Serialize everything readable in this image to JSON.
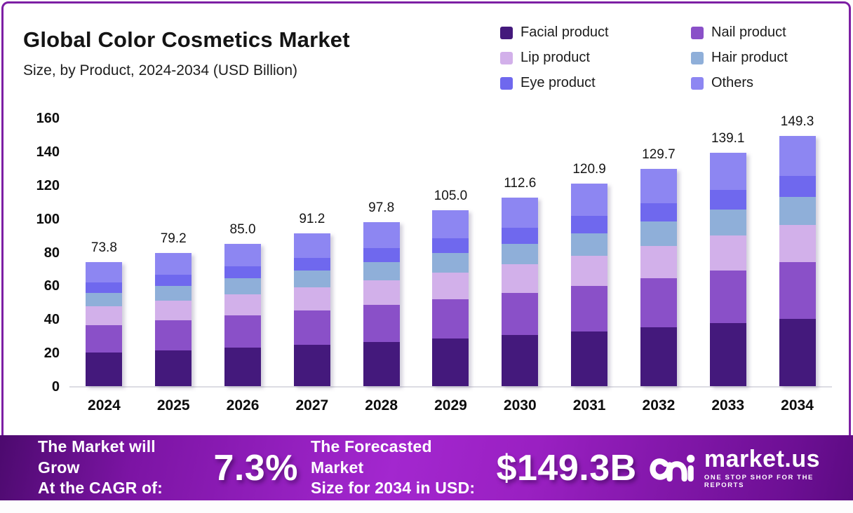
{
  "header": {
    "title": "Global Color Cosmetics Market",
    "subtitle": "Size, by Product, 2024-2034 (USD Billion)"
  },
  "legend": [
    {
      "label": "Facial product",
      "color": "#44197c"
    },
    {
      "label": "Nail product",
      "color": "#8a50c8"
    },
    {
      "label": "Lip product",
      "color": "#d2b0ea"
    },
    {
      "label": "Hair product",
      "color": "#8fafd9"
    },
    {
      "label": "Eye product",
      "color": "#6f68ee"
    },
    {
      "label": "Others",
      "color": "#8d86f2"
    }
  ],
  "chart_data": {
    "type": "bar",
    "stacked": true,
    "title": "Global Color Cosmetics Market Size, by Product, 2024-2034 (USD Billion)",
    "categories": [
      "2024",
      "2025",
      "2026",
      "2027",
      "2028",
      "2029",
      "2030",
      "2031",
      "2032",
      "2033",
      "2034"
    ],
    "totals": [
      73.8,
      79.2,
      85.0,
      91.2,
      97.8,
      105.0,
      112.6,
      120.9,
      129.7,
      139.1,
      149.3
    ],
    "total_labels": [
      "73.8",
      "79.2",
      "85.0",
      "91.2",
      "97.8",
      "105.0",
      "112.6",
      "120.9",
      "129.7",
      "139.1",
      "149.3"
    ],
    "series": [
      {
        "name": "Facial product",
        "color": "#44197c",
        "values": [
          19.9,
          21.4,
          23.0,
          24.6,
          26.4,
          28.4,
          30.4,
          32.6,
          35.0,
          37.6,
          40.3
        ]
      },
      {
        "name": "Nail product",
        "color": "#8a50c8",
        "values": [
          16.6,
          17.8,
          19.1,
          20.5,
          22.0,
          23.6,
          25.3,
          27.2,
          29.2,
          31.3,
          33.6
        ]
      },
      {
        "name": "Lip product",
        "color": "#d2b0ea",
        "values": [
          11.1,
          11.9,
          12.8,
          13.7,
          14.7,
          15.8,
          16.9,
          18.1,
          19.5,
          20.9,
          22.4
        ]
      },
      {
        "name": "Hair product",
        "color": "#8fafd9",
        "values": [
          8.1,
          8.7,
          9.4,
          10.0,
          10.8,
          11.6,
          12.4,
          13.3,
          14.3,
          15.3,
          16.4
        ]
      },
      {
        "name": "Eye product",
        "color": "#6f68ee",
        "values": [
          6.3,
          6.7,
          7.2,
          7.8,
          8.3,
          8.9,
          9.6,
          10.3,
          11.0,
          11.8,
          12.7
        ]
      },
      {
        "name": "Others",
        "color": "#8d86f2",
        "values": [
          11.8,
          12.7,
          13.5,
          14.6,
          15.6,
          16.7,
          18.0,
          19.4,
          20.7,
          22.2,
          23.9
        ]
      }
    ],
    "series_values_estimated_from_pixels": true,
    "xlabel": "",
    "ylabel": "",
    "ylim": [
      0,
      160
    ],
    "ytick_step": 20,
    "grid": false,
    "legend_position": "top-right"
  },
  "banner": {
    "left_line1": "The Market will Grow",
    "left_line2": "At the CAGR of:",
    "cagr": "7.3%",
    "mid_line1": "The Forecasted Market",
    "mid_line2": "Size for 2034 in USD:",
    "forecast": "$149.3B",
    "brand": "market.us",
    "tagline": "ONE STOP SHOP FOR THE REPORTS"
  },
  "colors": {
    "card_border": "#7d1fa4",
    "banner_gradient_mid": "#a327cf",
    "axis_line": "#dddde3"
  }
}
